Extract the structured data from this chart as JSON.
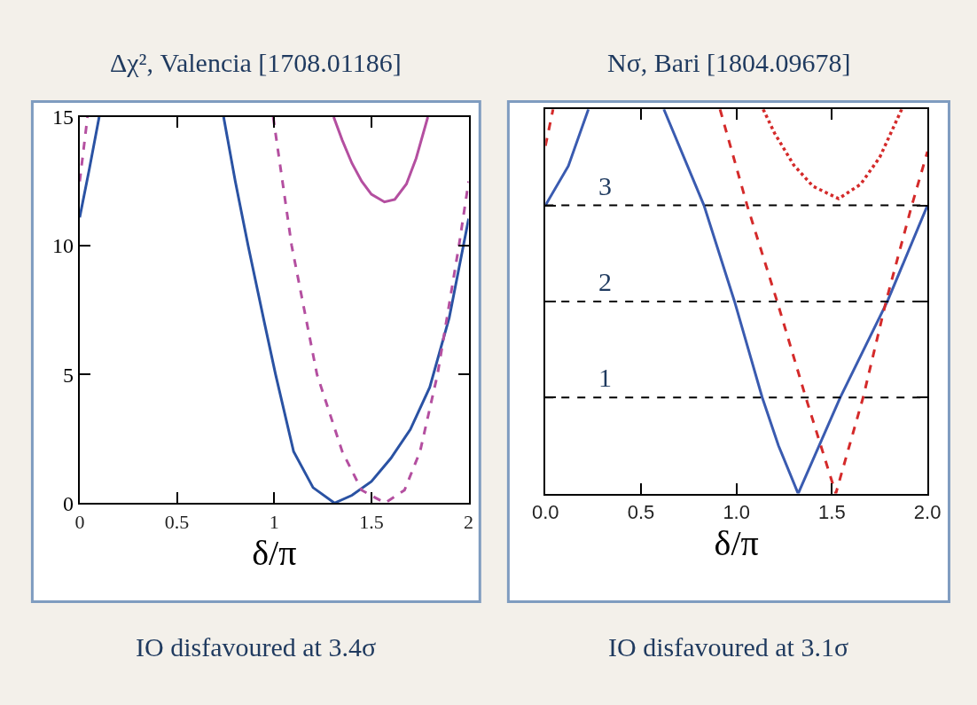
{
  "chart_data": [
    {
      "type": "line",
      "title": "Δχ², Valencia [1708.01186]",
      "xlabel": "δ/π",
      "annotations": [
        "IO disfavoured at 3.4σ"
      ],
      "xlim": [
        0,
        2
      ],
      "xticks": [
        0,
        0.5,
        1,
        1.5,
        2
      ],
      "ylim": [
        0,
        15
      ],
      "yticks": [
        0,
        5,
        10,
        15
      ],
      "series": [
        {
          "color": "#2a52a3",
          "line_style": "solid",
          "x": [
            0,
            0.05,
            0.1,
            0.4,
            0.74,
            0.8,
            0.866,
            0.95,
            1.007,
            1.1,
            1.2,
            1.31,
            1.4,
            1.5,
            1.6,
            1.7,
            1.8,
            1.9,
            2.0
          ],
          "values": [
            11.1,
            13,
            15,
            null,
            15,
            12.5,
            10,
            7,
            5,
            2,
            0.6,
            0,
            0.3,
            0.84,
            1.74,
            2.86,
            4.5,
            7.2,
            11.05
          ]
        },
        {
          "color": "#b44fa0",
          "line_style": "dashed",
          "x": [
            0,
            0.04,
            0.5,
            0.995,
            1.09,
            1.22,
            1.35,
            1.45,
            1.57,
            1.67,
            1.75,
            1.84,
            1.95,
            2.0
          ],
          "values": [
            12.5,
            15,
            null,
            15,
            10,
            5,
            2,
            0.5,
            0,
            0.5,
            2,
            5,
            10,
            12.5
          ]
        },
        {
          "color": "#b44fa0",
          "line_style": "solid",
          "x": [
            1.306,
            1.35,
            1.4,
            1.45,
            1.5,
            1.567,
            1.62,
            1.68,
            1.73,
            1.79
          ],
          "values": [
            15,
            14.1,
            13.2,
            12.5,
            12.0,
            11.7,
            11.8,
            12.4,
            13.4,
            15
          ]
        }
      ]
    },
    {
      "type": "line",
      "title": "Nσ, Bari [1804.09678]",
      "xlabel": "δ/π",
      "annotations": [
        "IO disfavoured at 3.1σ"
      ],
      "xlim": [
        0,
        2
      ],
      "xticks": [
        {
          "value": 0,
          "label": "0.0"
        },
        {
          "value": 0.5,
          "label": "0.5"
        },
        {
          "value": 1,
          "label": "1.0"
        },
        {
          "value": 1.5,
          "label": "1.5"
        },
        {
          "value": 2,
          "label": "2.0"
        }
      ],
      "ylim": [
        0,
        4
      ],
      "yticks": [
        {
          "value": 0,
          "label": null
        },
        {
          "value": 1,
          "label": null
        },
        {
          "value": 2,
          "label": null
        },
        {
          "value": 3,
          "label": null
        },
        {
          "value": 4,
          "label": null
        }
      ],
      "tick_labels": "x",
      "ref_lines": [
        {
          "axis": "y",
          "value": 1,
          "label": "1",
          "color": "#000000",
          "line_style": "dashed"
        },
        {
          "axis": "y",
          "value": 2,
          "label": "2",
          "color": "#000000",
          "line_style": "dashed"
        },
        {
          "axis": "y",
          "value": 3,
          "label": "3",
          "color": "#000000",
          "line_style": "dashed"
        }
      ],
      "series": [
        {
          "color": "#3a5bb0",
          "line_style": "solid",
          "x": [
            0,
            0.12,
            0.225,
            0.4,
            0.62,
            0.83,
            0.99,
            1.135,
            1.22,
            1.323,
            1.543,
            1.79,
            2.0
          ],
          "values": [
            3,
            3.41,
            4,
            null,
            4,
            3,
            2,
            1,
            0.5,
            0,
            1,
            2,
            3
          ]
        },
        {
          "color": "#d42a2a",
          "line_style": "dashed",
          "x": [
            0,
            0.04,
            0.5,
            0.914,
            1.056,
            1.213,
            1.363,
            1.52,
            1.663,
            1.783,
            1.918,
            2.0
          ],
          "values": [
            3.62,
            4,
            null,
            4,
            3,
            2,
            1,
            0,
            1,
            2,
            3,
            3.56
          ]
        },
        {
          "color": "#d42a2a",
          "line_style": "dotted",
          "x": [
            1.14,
            1.2,
            1.3,
            1.4,
            1.535,
            1.65,
            1.75,
            1.865
          ],
          "values": [
            4,
            3.75,
            3.42,
            3.2,
            3.07,
            3.22,
            3.5,
            4
          ]
        }
      ]
    }
  ]
}
